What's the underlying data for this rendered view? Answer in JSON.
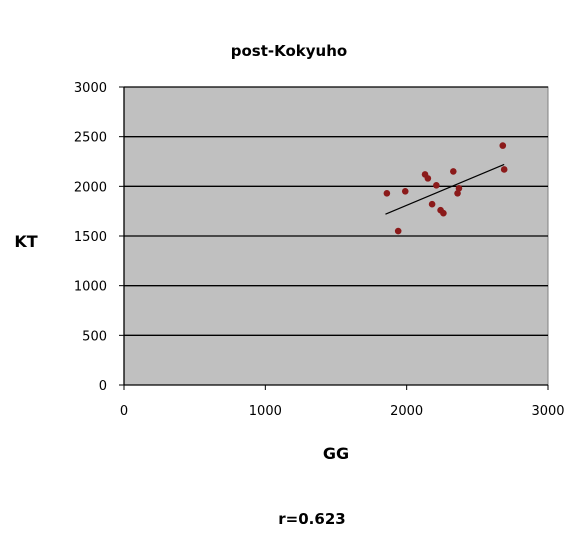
{
  "chart_data": {
    "type": "scatter",
    "title": "post-Kokyuho",
    "xlabel": "GG",
    "ylabel": "KT",
    "xlim": [
      0,
      3000
    ],
    "ylim": [
      0,
      3000
    ],
    "x_ticks": [
      "0",
      "1000",
      "2000",
      "3000"
    ],
    "y_ticks": [
      "0",
      "500",
      "1000",
      "1500",
      "2000",
      "2500",
      "3000"
    ],
    "grid": "horizontal",
    "plot_background": "#c0c0c0",
    "marker_color": "#8b1a1a",
    "trendline": {
      "from": [
        1850,
        1720
      ],
      "to": [
        2690,
        2220
      ]
    },
    "points": [
      {
        "x": 1860,
        "y": 1930
      },
      {
        "x": 1940,
        "y": 1550
      },
      {
        "x": 1990,
        "y": 1950
      },
      {
        "x": 2130,
        "y": 2120
      },
      {
        "x": 2150,
        "y": 2080
      },
      {
        "x": 2180,
        "y": 1820
      },
      {
        "x": 2210,
        "y": 2010
      },
      {
        "x": 2240,
        "y": 1760
      },
      {
        "x": 2260,
        "y": 1730
      },
      {
        "x": 2330,
        "y": 2150
      },
      {
        "x": 2360,
        "y": 1930
      },
      {
        "x": 2370,
        "y": 1980
      },
      {
        "x": 2680,
        "y": 2410
      },
      {
        "x": 2690,
        "y": 2170
      }
    ],
    "annotation": "r=0.623"
  }
}
